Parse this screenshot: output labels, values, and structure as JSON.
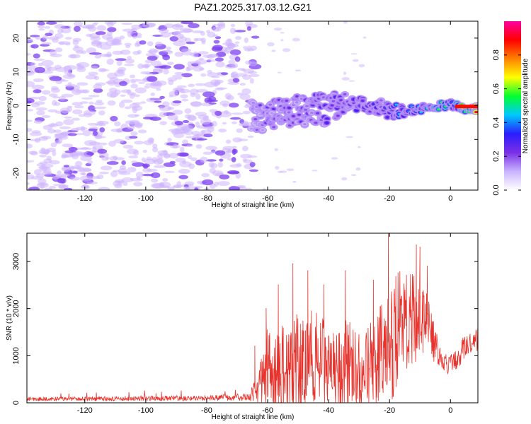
{
  "title": "PAZ1.2025.317.03.12.G21",
  "colors": {
    "snr_line": "#e8322c",
    "low_cloud": "#cdb4ff",
    "mid_cloud": "#7b3ff0",
    "frame": "#000000"
  },
  "chart_data": [
    {
      "type": "heatmap",
      "name": "spectrogram",
      "xlabel": "Height of straight line (km)",
      "ylabel": "Frequency (Hz)",
      "xlim": [
        -139,
        9
      ],
      "ylim": [
        -25,
        25
      ],
      "xticks": [
        -120,
        -100,
        -80,
        -60,
        -40,
        -20,
        0
      ],
      "yticks": [
        -20,
        -10,
        0,
        10,
        20
      ],
      "xtick_labels": [
        "-120",
        "-100",
        "-80",
        "-60",
        "-40",
        "-20",
        "0"
      ],
      "ytick_labels": [
        "-20",
        "-10",
        "0",
        "10",
        "20"
      ],
      "colorbar": {
        "label": "Normalized spectral amplitude",
        "range": [
          0,
          1
        ],
        "ticks": [
          0.0,
          0.2,
          0.4,
          0.6,
          0.8
        ],
        "tick_labels": [
          "0.0",
          "0.2",
          "0.4",
          "0.6",
          "0.8"
        ],
        "stops": [
          "#ffffff",
          "#c9b3ff",
          "#7a2fe6",
          "#2a1dff",
          "#00c8ff",
          "#00ff30",
          "#ffff00",
          "#ff8000",
          "#ff0000",
          "#ff00a0"
        ]
      },
      "ridge": {
        "description_free": true,
        "x": [
          -65,
          -60,
          -55,
          -50,
          -45,
          -40,
          -35,
          -30,
          -25,
          -20,
          -15,
          -10,
          -5,
          0,
          5,
          9
        ],
        "freq": [
          -3,
          -3.5,
          -2,
          -1.5,
          -1,
          -1.2,
          1.2,
          0.5,
          0,
          -1.5,
          -1.5,
          -0.8,
          0,
          0.2,
          -0.8,
          -0.8
        ],
        "amplitude": [
          0.22,
          0.24,
          0.22,
          0.25,
          0.26,
          0.3,
          0.28,
          0.34,
          0.3,
          0.36,
          0.42,
          0.48,
          0.52,
          0.5,
          0.85,
          0.9
        ]
      }
    },
    {
      "type": "line",
      "name": "snr",
      "xlabel": "Height of straight line (km)",
      "ylabel": "SNR (10 * v/v)",
      "xlim": [
        -139,
        9
      ],
      "ylim": [
        0,
        3600
      ],
      "xticks": [
        -120,
        -100,
        -80,
        -60,
        -40,
        -20,
        0
      ],
      "yticks": [
        0,
        1000,
        2000,
        3000
      ],
      "xtick_labels": [
        "-120",
        "-100",
        "-80",
        "-60",
        "-40",
        "-20",
        "0"
      ],
      "ytick_labels": [
        "0",
        "1000",
        "2000",
        "3000"
      ],
      "envelope": {
        "x": [
          -139,
          -80,
          -66,
          -64,
          -62,
          -60,
          -58,
          -55,
          -52,
          -50,
          -48,
          -45,
          -43,
          -40,
          -38,
          -35,
          -33,
          -30,
          -28,
          -25,
          -22,
          -20,
          -18,
          -15,
          -12,
          -10,
          -8,
          -6,
          -4,
          -2,
          0,
          2,
          4,
          6,
          9
        ],
        "base": [
          80,
          100,
          120,
          250,
          500,
          700,
          500,
          700,
          600,
          800,
          700,
          1000,
          900,
          800,
          700,
          800,
          900,
          600,
          700,
          900,
          1100,
          1300,
          1500,
          1700,
          1800,
          1900,
          1700,
          1400,
          1100,
          850,
          800,
          950,
          1150,
          1250,
          1350
        ],
        "amp": [
          40,
          60,
          80,
          300,
          600,
          900,
          800,
          1200,
          1000,
          1300,
          1100,
          1200,
          1000,
          900,
          800,
          1100,
          900,
          900,
          800,
          1000,
          1200,
          1400,
          1300,
          1100,
          1000,
          900,
          700,
          500,
          300,
          250,
          200,
          250,
          300,
          250,
          250
        ]
      },
      "peaks": [
        {
          "x": -64.2,
          "y": 1200
        },
        {
          "x": -60.5,
          "y": 2000
        },
        {
          "x": -56.5,
          "y": 2500
        },
        {
          "x": -51.7,
          "y": 2950
        },
        {
          "x": -46.8,
          "y": 2800
        },
        {
          "x": -41.5,
          "y": 2500
        },
        {
          "x": -34.5,
          "y": 2800
        },
        {
          "x": -25.3,
          "y": 2600
        },
        {
          "x": -20.4,
          "y": 3600
        },
        {
          "x": -18.5,
          "y": 2300
        },
        {
          "x": -11.2,
          "y": 3350
        },
        {
          "x": -10.0,
          "y": 3300
        },
        {
          "x": -7.6,
          "y": 2900
        }
      ]
    }
  ]
}
